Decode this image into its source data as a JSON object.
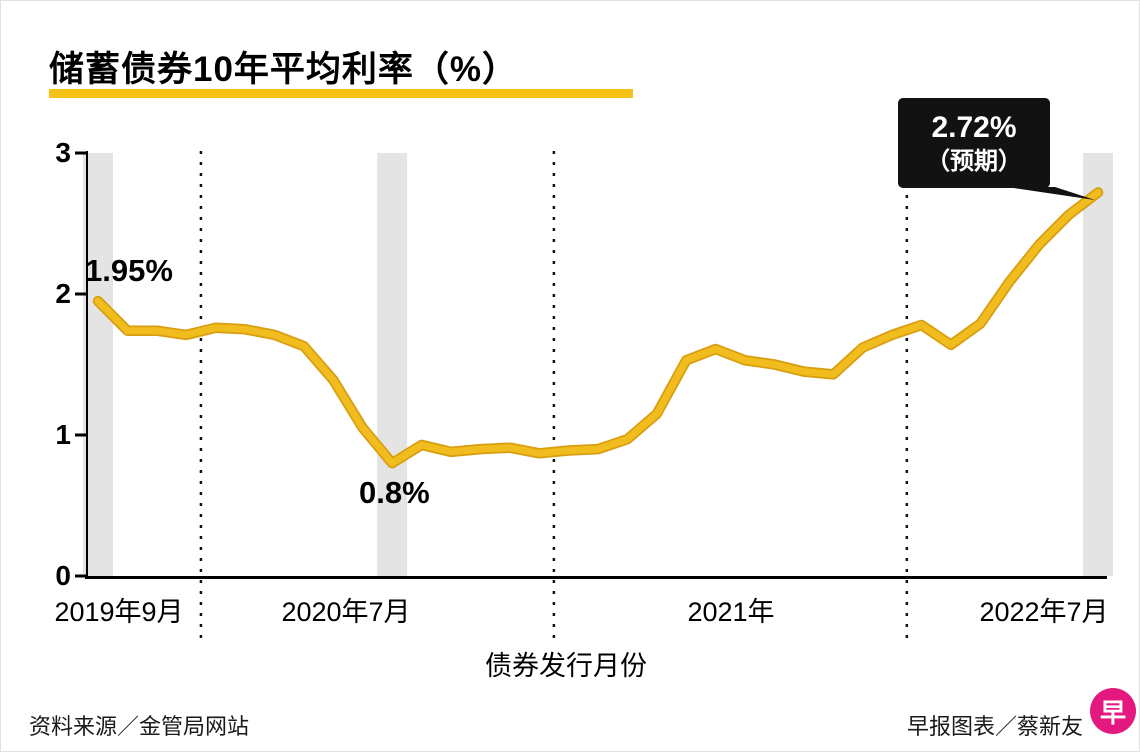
{
  "title": "储蓄债券10年平均利率（%）",
  "chart_data": {
    "type": "line",
    "series_name": "储蓄债券10年平均利率",
    "x": [
      "2019-09",
      "2019-10",
      "2019-11",
      "2019-12",
      "2020-01",
      "2020-02",
      "2020-03",
      "2020-04",
      "2020-05",
      "2020-06",
      "2020-07",
      "2020-08",
      "2020-09",
      "2020-10",
      "2020-11",
      "2020-12",
      "2021-01",
      "2021-02",
      "2021-03",
      "2021-04",
      "2021-05",
      "2021-06",
      "2021-07",
      "2021-08",
      "2021-09",
      "2021-10",
      "2021-11",
      "2021-12",
      "2022-01",
      "2022-02",
      "2022-03",
      "2022-04",
      "2022-05",
      "2022-06",
      "2022-07"
    ],
    "values": [
      1.95,
      1.74,
      1.74,
      1.71,
      1.76,
      1.75,
      1.71,
      1.63,
      1.39,
      1.05,
      0.8,
      0.93,
      0.88,
      0.9,
      0.91,
      0.87,
      0.89,
      0.9,
      0.97,
      1.15,
      1.53,
      1.61,
      1.53,
      1.5,
      1.45,
      1.43,
      1.62,
      1.71,
      1.78,
      1.64,
      1.79,
      2.09,
      2.35,
      2.56,
      2.72
    ],
    "ylim": [
      0,
      3
    ],
    "y_ticks": [
      "0",
      "1",
      "2",
      "3"
    ],
    "x_tick_labels": [
      "2019年9月",
      "2020年7月",
      "2021年",
      "2022年7月"
    ],
    "xlabel": "债券发行月份",
    "highlighted_months": [
      "2019-09",
      "2020-07",
      "2022-07"
    ],
    "line_color": "#F1BD1E",
    "line_edge_color": "#D89E10",
    "band_color": "#E4E4E4",
    "grid": "dotted-vertical-year-separators",
    "legend": "none",
    "annotations": {
      "start_value": "1.95%",
      "low_value": "0.8%",
      "callout_value": "2.72%",
      "callout_note": "（预期）"
    }
  },
  "footer": {
    "source": "资料来源／金管局网站",
    "credit": "早报图表／蔡新友",
    "logo_char": "早"
  }
}
